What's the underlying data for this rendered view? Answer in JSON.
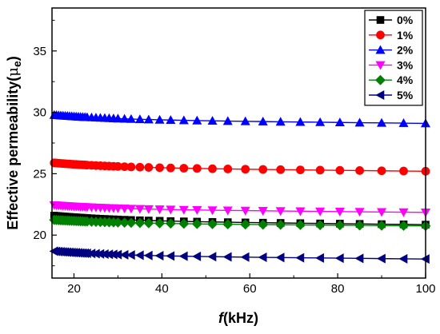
{
  "chart_data": {
    "type": "line",
    "title": "",
    "xlabel_italic": "f",
    "xlabel_rest": "(kHz)",
    "ylabel_main": "Effective permeability(",
    "ylabel_mu": "μ",
    "ylabel_sub": "e",
    "ylabel_close": ")",
    "xlim": [
      15,
      100
    ],
    "ylim": [
      16.5,
      38.5
    ],
    "xticks": [
      20,
      40,
      60,
      80,
      100
    ],
    "yticks": [
      20,
      25,
      30,
      35
    ],
    "xtick_labels": [
      "20",
      "40",
      "60",
      "80",
      "100"
    ],
    "ytick_labels": [
      "20",
      "25",
      "30",
      "35"
    ],
    "legend_position": "top-right",
    "grid": false,
    "x": [
      15.5,
      16.0,
      16.5,
      17.0,
      17.5,
      18.0,
      18.5,
      19.0,
      19.5,
      20.0,
      20.5,
      21.0,
      21.5,
      22.0,
      22.5,
      23.0,
      24.0,
      25.0,
      26.0,
      27.0,
      28.0,
      29.0,
      30.0,
      31.5,
      33.0,
      35.0,
      37.0,
      39.5,
      42.0,
      45.0,
      48.0,
      51.5,
      55.0,
      59.0,
      63.0,
      67.0,
      71.5,
      76.0,
      80.5,
      85.0,
      90.0,
      95.0,
      100.0
    ],
    "series": [
      {
        "name": "0%",
        "color": "#000000",
        "marker": "square",
        "start": 21.6,
        "end": 20.85
      },
      {
        "name": "1%",
        "color": "#ff0000",
        "marker": "circle",
        "start": 25.9,
        "end": 25.2
      },
      {
        "name": "2%",
        "color": "#0000ff",
        "marker": "triangle-up",
        "start": 29.8,
        "end": 29.1
      },
      {
        "name": "3%",
        "color": "#ff00ff",
        "marker": "triangle-down",
        "start": 22.45,
        "end": 21.85
      },
      {
        "name": "4%",
        "color": "#008000",
        "marker": "diamond",
        "start": 21.25,
        "end": 20.75
      },
      {
        "name": "5%",
        "color": "#000080",
        "marker": "triangle-left",
        "start": 18.7,
        "end": 18.05
      }
    ]
  }
}
